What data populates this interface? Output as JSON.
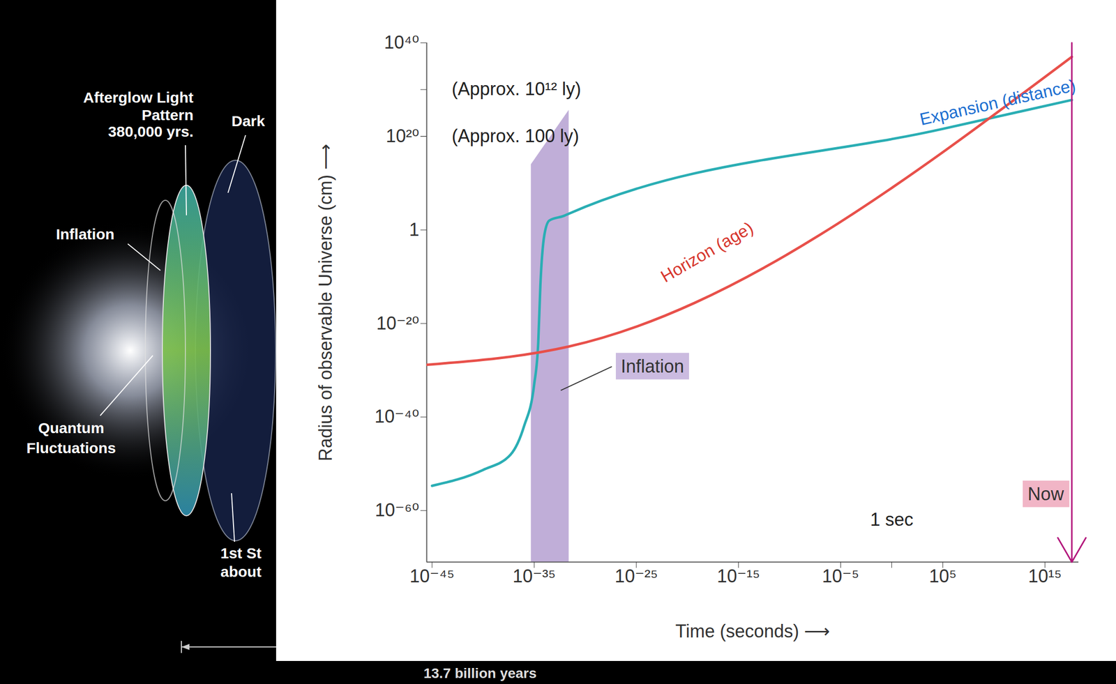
{
  "chart_data": {
    "type": "line",
    "log": true,
    "grid": false,
    "xlabel": "Time (seconds) ⟶",
    "ylabel": "Radius of observable Universe (cm) ⟶",
    "xlim": [
      3e-46,
      2e+18
    ],
    "ylim": [
      1e-71,
      1e+40
    ],
    "xticks": [
      {
        "value": 1e-45,
        "label": "10⁻⁴⁵"
      },
      {
        "value": 1e-35,
        "label": "10⁻³⁵"
      },
      {
        "value": 1e-25,
        "label": "10⁻²⁵"
      },
      {
        "value": 1e-15,
        "label": "10⁻¹⁵"
      },
      {
        "value": 1e-05,
        "label": "10⁻⁵"
      },
      {
        "value": 100000.0,
        "label": "10⁵"
      },
      {
        "value": 1000000000000000.0,
        "label": "10¹⁵"
      }
    ],
    "yticks": [
      {
        "value": 1e+40,
        "label": "10⁴⁰"
      },
      {
        "value": 1e+20,
        "label": "10²⁰"
      },
      1,
      {
        "value": 1e-20,
        "label": "10⁻²⁰"
      },
      {
        "value": 1e-40,
        "label": "10⁻⁴⁰"
      },
      {
        "value": 1e-60,
        "label": "10⁻⁶⁰"
      }
    ],
    "series": [
      {
        "name": "Expansion (distance)",
        "color": "#2aaeb4",
        "x": [
          1e-45,
          1e-40,
          5e-38,
          1e-36,
          1e-35,
          2.5e-35,
          4e-35,
          1e-34,
          3e-34,
          8e-33,
          2.5e-32,
          100000.0,
          4.3e+17
        ],
        "values": [
          2e-55,
          5e-52,
          1e-48,
          1e-42,
          1e-33,
          1e-24,
          1e-12,
          0.1,
          100.0,
          1000.0,
          3000.0,
          4e+21,
          6e+27
        ]
      },
      {
        "name": "Horizon (age)",
        "color": "#e8504a",
        "x": [
          3e-46,
          2.5e-32,
          4.3e+17
        ],
        "values": [
          1.5e-29,
          1.2e-25,
          1e+37
        ]
      }
    ],
    "inflation": {
      "label": "Inflation",
      "color": "#b9a5d4",
      "x": [
        5e-36,
        2.5e-32
      ],
      "y_top": [
        100000000000000.0,
        4e+25
      ],
      "label_x": 4e-28,
      "label_y": 6e-30,
      "points_to": [
        4e-33,
        5e-35
      ]
    },
    "annotations": [
      {
        "text": "(Approx. 10¹² ly)",
        "y": 1e+30
      },
      {
        "text": "(Approx. 100 ly)",
        "y": 1e+20
      },
      {
        "text": "1 sec",
        "x": 1,
        "y": 1e-62
      }
    ],
    "now": {
      "label": "Now",
      "x": 4.3e+17,
      "y": 3e-57,
      "color": "#b3177c"
    }
  },
  "illustration": {
    "labels": [
      [
        "Afterglow Light",
        "Pattern",
        "380,000 yrs."
      ],
      [
        "Dark"
      ],
      [
        "Inflation"
      ],
      [
        "Quantum",
        "Fluctuations"
      ],
      [
        "1st St",
        "about"
      ]
    ],
    "span_label": "13.7 billion years"
  }
}
